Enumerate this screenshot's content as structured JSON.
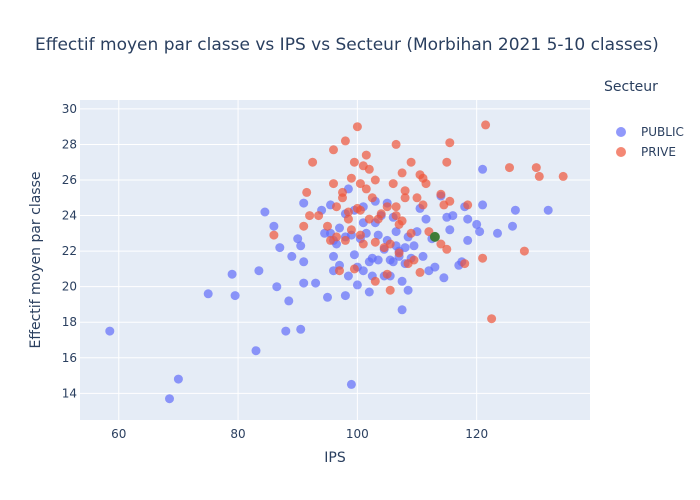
{
  "chart_data": {
    "type": "scatter",
    "title": "Effectif moyen par classe vs IPS vs Secteur (Morbihan 2021 5-10 classes)",
    "xlabel": "IPS",
    "ylabel": "Effectif moyen par classe",
    "xlim": [
      53.5,
      139
    ],
    "ylim": [
      12.5,
      30.5
    ],
    "xticks": [
      60,
      80,
      100,
      120
    ],
    "yticks": [
      14,
      16,
      18,
      20,
      22,
      24,
      26,
      28,
      30
    ],
    "grid": true,
    "plot_background": "#e5ecf6",
    "legend": {
      "title": "Secteur",
      "position": "right"
    },
    "series": [
      {
        "name": "PUBLIC",
        "color": "#636efa",
        "points": [
          [
            58.5,
            17.5
          ],
          [
            68.5,
            13.7
          ],
          [
            70,
            14.8
          ],
          [
            75,
            19.6
          ],
          [
            79,
            20.7
          ],
          [
            79.5,
            19.5
          ],
          [
            83,
            16.4
          ],
          [
            83.5,
            20.9
          ],
          [
            84.5,
            24.2
          ],
          [
            86,
            23.4
          ],
          [
            86.5,
            20
          ],
          [
            87,
            22.2
          ],
          [
            88,
            17.5
          ],
          [
            88.5,
            19.2
          ],
          [
            89,
            21.7
          ],
          [
            90,
            22.7
          ],
          [
            90.5,
            22.3
          ],
          [
            90.5,
            17.6
          ],
          [
            91,
            20.2
          ],
          [
            91,
            21.4
          ],
          [
            91,
            24.7
          ],
          [
            93,
            20.2
          ],
          [
            94,
            24.3
          ],
          [
            94.5,
            23
          ],
          [
            95,
            19.4
          ],
          [
            95.5,
            23
          ],
          [
            95.5,
            24.6
          ],
          [
            96,
            22.6
          ],
          [
            96,
            21.7
          ],
          [
            96,
            20.9
          ],
          [
            96.5,
            22.4
          ],
          [
            97,
            21.2
          ],
          [
            97,
            23.3
          ],
          [
            98,
            22.8
          ],
          [
            98,
            24.1
          ],
          [
            98,
            19.5
          ],
          [
            98.5,
            25.5
          ],
          [
            98.5,
            20.6
          ],
          [
            99,
            14.5
          ],
          [
            99,
            22.9
          ],
          [
            99.5,
            24.3
          ],
          [
            99.5,
            21.8
          ],
          [
            100,
            20.1
          ],
          [
            100,
            21.1
          ],
          [
            100.5,
            22.7
          ],
          [
            101,
            23.6
          ],
          [
            101,
            20.9
          ],
          [
            101,
            24.5
          ],
          [
            101.5,
            23
          ],
          [
            102,
            19.7
          ],
          [
            102,
            21.4
          ],
          [
            102.5,
            21.6
          ],
          [
            102.5,
            20.6
          ],
          [
            103,
            23.6
          ],
          [
            103,
            24.8
          ],
          [
            103.5,
            21.5
          ],
          [
            103.5,
            22.9
          ],
          [
            104,
            24
          ],
          [
            104.5,
            22.1
          ],
          [
            104.5,
            20.6
          ],
          [
            105,
            24.7
          ],
          [
            105,
            22.6
          ],
          [
            105.5,
            21.5
          ],
          [
            105.5,
            20.6
          ],
          [
            106,
            21.4
          ],
          [
            106,
            23.9
          ],
          [
            106.5,
            23.1
          ],
          [
            106.5,
            22.3
          ],
          [
            107,
            22
          ],
          [
            107,
            21.7
          ],
          [
            107.5,
            20.3
          ],
          [
            107.5,
            18.7
          ],
          [
            108,
            22.2
          ],
          [
            108,
            21.3
          ],
          [
            108.5,
            22.8
          ],
          [
            108.5,
            19.8
          ],
          [
            109,
            21.6
          ],
          [
            109.5,
            22.3
          ],
          [
            110,
            23.1
          ],
          [
            110.5,
            24.4
          ],
          [
            111,
            21.7
          ],
          [
            111.5,
            23.8
          ],
          [
            112,
            20.9
          ],
          [
            112.5,
            22.7
          ],
          [
            113,
            21.1
          ],
          [
            114,
            25.1
          ],
          [
            114.5,
            20.5
          ],
          [
            115,
            23.9
          ],
          [
            115.5,
            23.2
          ],
          [
            116,
            24
          ],
          [
            117,
            21.2
          ],
          [
            117.5,
            21.4
          ],
          [
            118,
            24.5
          ],
          [
            118.5,
            22.6
          ],
          [
            118.5,
            23.8
          ],
          [
            120,
            23.5
          ],
          [
            120.5,
            23.1
          ],
          [
            121,
            24.6
          ],
          [
            121,
            26.6
          ],
          [
            123.5,
            23
          ],
          [
            126,
            23.4
          ],
          [
            126.5,
            24.3
          ],
          [
            132,
            24.3
          ]
        ]
      },
      {
        "name": "PRIVE",
        "color": "#ef553b",
        "points": [
          [
            86,
            22.9
          ],
          [
            91,
            23.4
          ],
          [
            91.5,
            25.3
          ],
          [
            92,
            24
          ],
          [
            92.5,
            27
          ],
          [
            93.5,
            24
          ],
          [
            95,
            23.4
          ],
          [
            95.5,
            22.6
          ],
          [
            96,
            25.8
          ],
          [
            96,
            27.7
          ],
          [
            96.5,
            24.5
          ],
          [
            96.5,
            22.8
          ],
          [
            97,
            20.9
          ],
          [
            97.5,
            25
          ],
          [
            97.5,
            25.3
          ],
          [
            98,
            28.2
          ],
          [
            98,
            22.6
          ],
          [
            98.5,
            23.8
          ],
          [
            98.5,
            24.2
          ],
          [
            99,
            23.2
          ],
          [
            99,
            26.1
          ],
          [
            99.5,
            27
          ],
          [
            99.5,
            21
          ],
          [
            100,
            24.4
          ],
          [
            100,
            29
          ],
          [
            100.5,
            22.9
          ],
          [
            100.5,
            25.8
          ],
          [
            100.5,
            24.3
          ],
          [
            101,
            26.8
          ],
          [
            101,
            22.4
          ],
          [
            101.5,
            27.4
          ],
          [
            101.5,
            25.5
          ],
          [
            102,
            23.8
          ],
          [
            102,
            26.6
          ],
          [
            102.5,
            25
          ],
          [
            103,
            26
          ],
          [
            103,
            20.3
          ],
          [
            103,
            22.5
          ],
          [
            103.5,
            23.8
          ],
          [
            104,
            24.1
          ],
          [
            104.5,
            22.2
          ],
          [
            105,
            24.5
          ],
          [
            105,
            20.7
          ],
          [
            105.5,
            22.4
          ],
          [
            105.5,
            19.8
          ],
          [
            106,
            25.8
          ],
          [
            106.5,
            28
          ],
          [
            106.5,
            24
          ],
          [
            106.5,
            24.5
          ],
          [
            107,
            23.5
          ],
          [
            107,
            21.9
          ],
          [
            107.5,
            26.4
          ],
          [
            107.5,
            23.7
          ],
          [
            108,
            25.4
          ],
          [
            108,
            25
          ],
          [
            108.5,
            21.3
          ],
          [
            109,
            23
          ],
          [
            109,
            27
          ],
          [
            109.5,
            21.5
          ],
          [
            110,
            25
          ],
          [
            110.5,
            26.3
          ],
          [
            110.5,
            20.8
          ],
          [
            111,
            26.1
          ],
          [
            111,
            24.6
          ],
          [
            111.5,
            25.8
          ],
          [
            112,
            23.1
          ],
          [
            113,
            22.8
          ],
          [
            114,
            22.4
          ],
          [
            114,
            25.2
          ],
          [
            114.5,
            24.6
          ],
          [
            115,
            27
          ],
          [
            115,
            22.1
          ],
          [
            115.5,
            24.8
          ],
          [
            115.5,
            28.1
          ],
          [
            118,
            21.3
          ],
          [
            118.5,
            24.6
          ],
          [
            121,
            21.6
          ],
          [
            121.5,
            29.1
          ],
          [
            122.5,
            18.2
          ],
          [
            125.5,
            26.7
          ],
          [
            128,
            22
          ],
          [
            130,
            26.7
          ],
          [
            130.5,
            26.2
          ],
          [
            134.5,
            26.2
          ]
        ]
      },
      {
        "name": "",
        "color": "#2e7d32",
        "points": [
          [
            113,
            22.8
          ]
        ]
      }
    ]
  }
}
